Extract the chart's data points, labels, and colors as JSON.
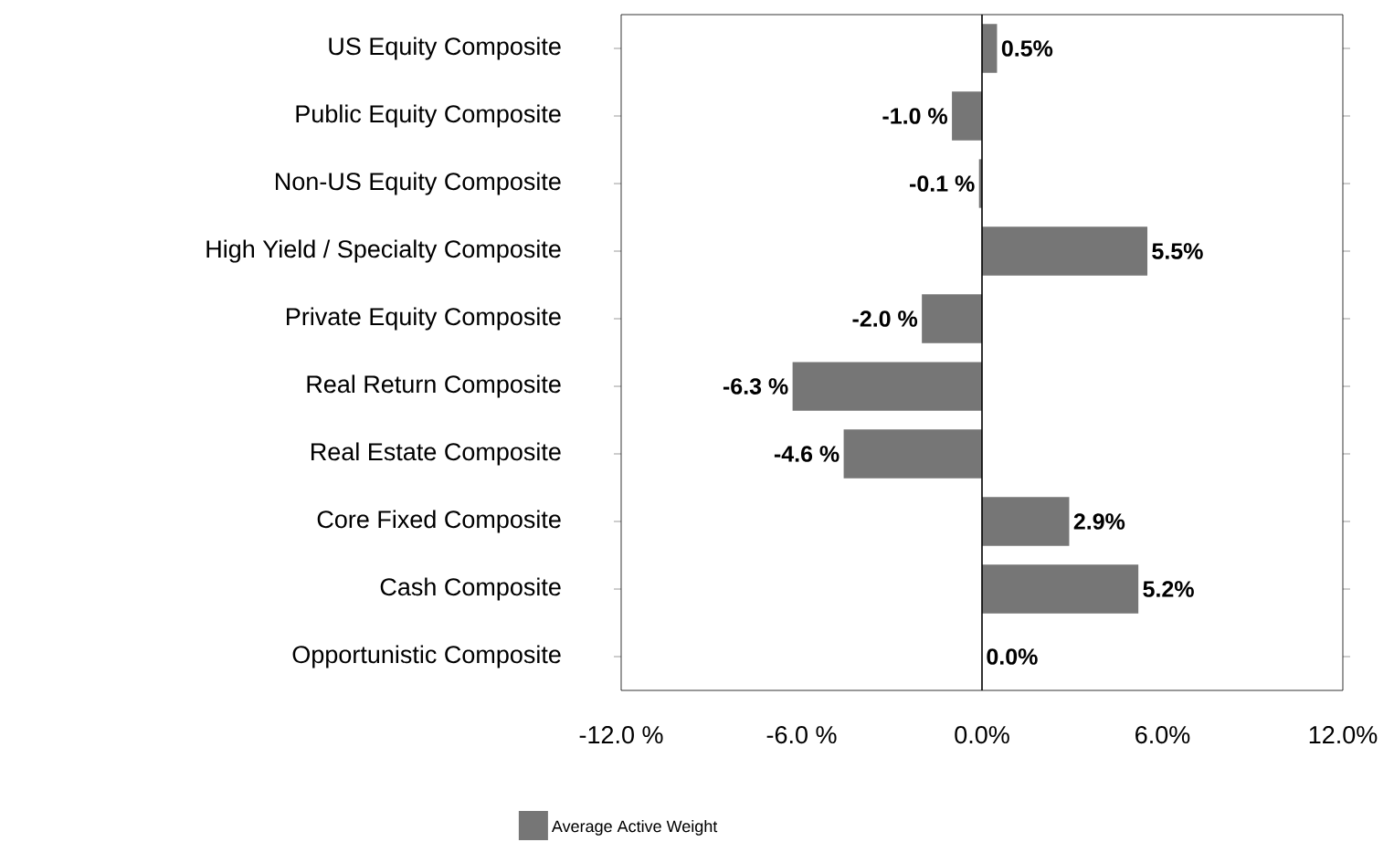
{
  "chart_data": {
    "type": "bar",
    "orientation": "horizontal",
    "categories": [
      "US Equity Composite",
      "Public Equity Composite",
      "Non-US Equity Composite",
      "High Yield / Specialty Composite",
      "Private Equity Composite",
      "Real Return Composite",
      "Real Estate Composite",
      "Core Fixed Composite",
      "Cash Composite",
      "Opportunistic Composite"
    ],
    "series": [
      {
        "name": "Average Active Weight",
        "color": "#767676",
        "values": [
          0.5,
          -1.0,
          -0.1,
          5.5,
          -2.0,
          -6.3,
          -4.6,
          2.9,
          5.2,
          0.0
        ],
        "value_labels": [
          "0.5%",
          "-1.0 %",
          "-0.1 %",
          "5.5%",
          "-2.0 %",
          "-6.3 %",
          "-4.6 %",
          "2.9%",
          "5.2%",
          "0.0%"
        ]
      }
    ],
    "xlim": [
      -12,
      12
    ],
    "xticks": [
      {
        "value": -12,
        "label": "-12.0 %"
      },
      {
        "value": -6,
        "label": "-6.0 %"
      },
      {
        "value": 0,
        "label": "0.0%"
      },
      {
        "value": 6,
        "label": "6.0%"
      },
      {
        "value": 12,
        "label": "12.0%"
      }
    ],
    "ref_lines": [
      {
        "axis": "x",
        "value": 0
      }
    ],
    "grid": false,
    "legend": "bottom"
  }
}
